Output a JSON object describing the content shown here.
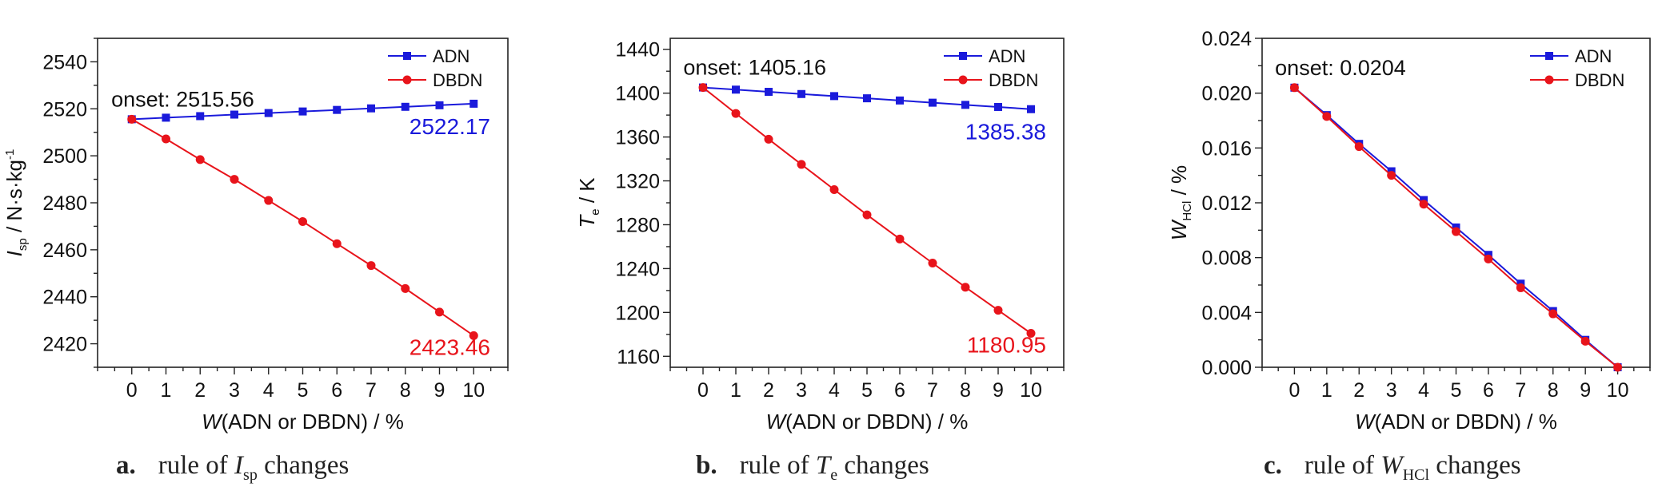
{
  "chart_data": [
    {
      "type": "line",
      "panel": "a",
      "caption": {
        "label": "a.",
        "text": "rule of",
        "symbol": "I",
        "sub": "sp",
        "tail": "changes"
      },
      "xlabel": {
        "var": "W",
        "rest": "(ADN or DBDN) / %"
      },
      "ylabel": {
        "var": "I",
        "sub": "sp",
        "rest": " / N·s·kg",
        "sup": "-1"
      },
      "x": [
        0,
        1,
        2,
        3,
        4,
        5,
        6,
        7,
        8,
        9,
        10
      ],
      "xlim": [
        -1,
        11
      ],
      "ylim": [
        2410,
        2550
      ],
      "yticks": [
        "2420",
        "2440",
        "2460",
        "2480",
        "2500",
        "2520",
        "2540"
      ],
      "series": [
        {
          "name": "ADN",
          "color": "#1a1adb",
          "marker": "square",
          "values": [
            2515.56,
            2516.22,
            2516.88,
            2517.54,
            2518.2,
            2518.87,
            2519.53,
            2520.19,
            2520.85,
            2521.51,
            2522.17
          ]
        },
        {
          "name": "DBDN",
          "color": "#e8141b",
          "marker": "circle",
          "values": [
            2515.56,
            2507.2,
            2498.4,
            2490.0,
            2481.0,
            2472.0,
            2462.6,
            2453.3,
            2443.5,
            2433.5,
            2423.46
          ]
        }
      ],
      "onset": "onset: 2515.56",
      "end_labels": [
        {
          "text": "2522.17",
          "color": "#1a1adb"
        },
        {
          "text": "2423.46",
          "color": "#e8141b"
        }
      ],
      "legend": "top-right"
    },
    {
      "type": "line",
      "panel": "b",
      "caption": {
        "label": "b.",
        "text": "rule of",
        "symbol": "T",
        "sub": "e",
        "tail": "changes"
      },
      "xlabel": {
        "var": "W",
        "rest": "(ADN or DBDN) / %"
      },
      "ylabel": {
        "var": "T",
        "sub": "e",
        "rest": " / K",
        "sup": ""
      },
      "x": [
        0,
        1,
        2,
        3,
        4,
        5,
        6,
        7,
        8,
        9,
        10
      ],
      "xlim": [
        -1,
        11
      ],
      "ylim": [
        1150,
        1450
      ],
      "yticks": [
        "1160",
        "1200",
        "1240",
        "1280",
        "1320",
        "1360",
        "1400",
        "1440"
      ],
      "series": [
        {
          "name": "ADN",
          "color": "#1a1adb",
          "marker": "square",
          "values": [
            1405.16,
            1403.2,
            1401.2,
            1399.2,
            1397.3,
            1395.3,
            1393.3,
            1391.3,
            1389.3,
            1387.4,
            1385.38
          ]
        },
        {
          "name": "DBDN",
          "color": "#e8141b",
          "marker": "circle",
          "values": [
            1405.16,
            1381.5,
            1358.0,
            1335.0,
            1312.0,
            1289.0,
            1267.0,
            1245.0,
            1223.0,
            1202.0,
            1180.95
          ]
        }
      ],
      "onset": "onset: 1405.16",
      "end_labels": [
        {
          "text": "1385.38",
          "color": "#1a1adb"
        },
        {
          "text": "1180.95",
          "color": "#e8141b"
        }
      ],
      "legend": "top-right"
    },
    {
      "type": "line",
      "panel": "c",
      "caption": {
        "label": "c.",
        "text": "rule of",
        "symbol": "W",
        "sub": "HCl",
        "tail": "changes"
      },
      "xlabel": {
        "var": "W",
        "rest": "(ADN or DBDN) / %"
      },
      "ylabel": {
        "var": "W",
        "sub": "HCl",
        "rest": " / %",
        "sup": ""
      },
      "x": [
        0,
        1,
        2,
        3,
        4,
        5,
        6,
        7,
        8,
        9,
        10
      ],
      "xlim": [
        -1,
        11
      ],
      "ylim": [
        0,
        0.024
      ],
      "yticks": [
        "0.000",
        "0.004",
        "0.008",
        "0.012",
        "0.016",
        "0.020",
        "0.024"
      ],
      "series": [
        {
          "name": "ADN",
          "color": "#1a1adb",
          "marker": "square",
          "values": [
            0.0204,
            0.0184,
            0.0163,
            0.0143,
            0.0122,
            0.0102,
            0.0082,
            0.0061,
            0.0041,
            0.002,
            0.0
          ]
        },
        {
          "name": "DBDN",
          "color": "#e8141b",
          "marker": "circle",
          "values": [
            0.0204,
            0.0183,
            0.0161,
            0.014,
            0.0119,
            0.0099,
            0.0079,
            0.0058,
            0.0039,
            0.0019,
            0.0
          ]
        }
      ],
      "onset": "onset: 0.0204",
      "end_labels": [],
      "legend": "top-right"
    }
  ]
}
